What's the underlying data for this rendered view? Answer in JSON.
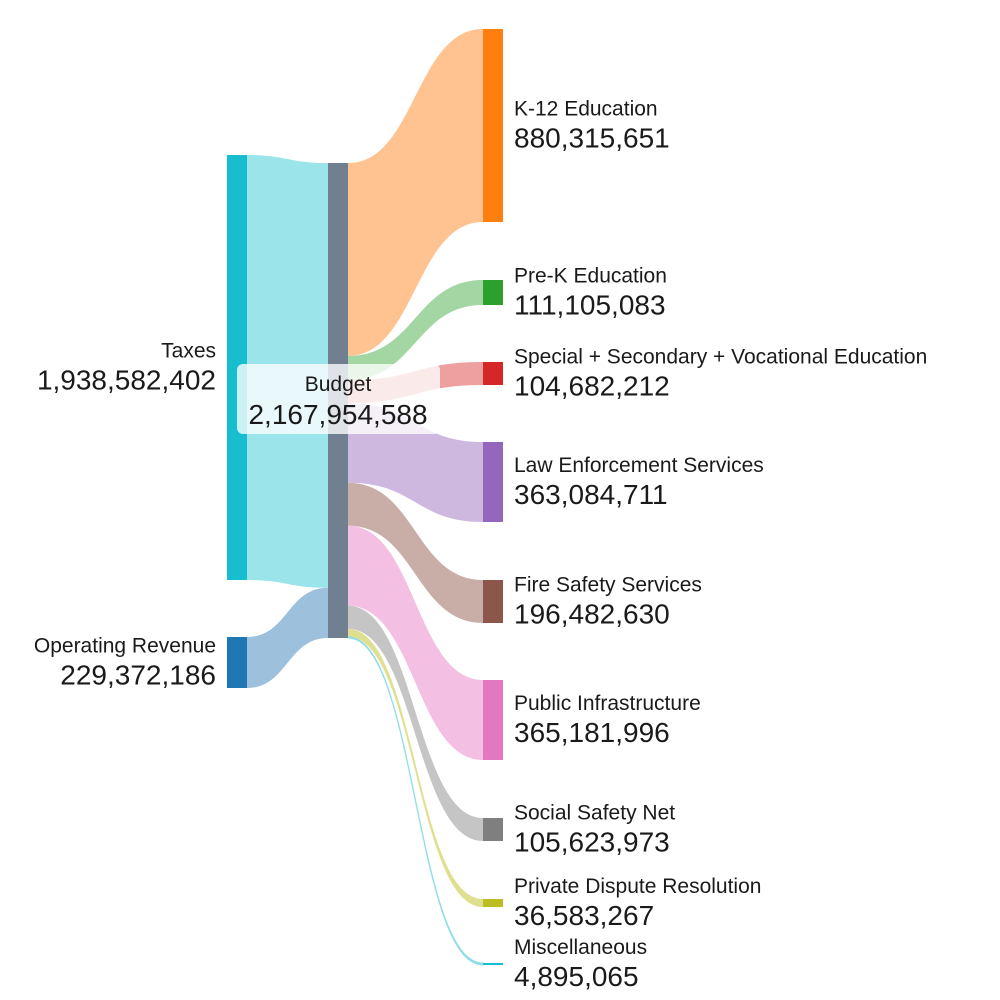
{
  "chart_data": {
    "type": "sankey",
    "title": "",
    "sources": [
      {
        "name": "Taxes",
        "value": "1,938,582,402",
        "amount": 1938582402,
        "color": "#17becf",
        "link_color": "#9ae4ea"
      },
      {
        "name": "Operating Revenue",
        "value": "229,372,186",
        "amount": 229372186,
        "color": "#1f77b4",
        "link_color": "#9dc0dc"
      }
    ],
    "hub": {
      "name": "Budget",
      "value": "2,167,954,588",
      "amount": 2167954588,
      "color": "#708090"
    },
    "targets": [
      {
        "name": "K-12 Education",
        "value": "880,315,651",
        "amount": 880315651,
        "color": "#ff7f0e",
        "link_color": "#ffc391"
      },
      {
        "name": "Pre-K Education",
        "value": "111,105,083",
        "amount": 111105083,
        "color": "#2ca02c",
        "link_color": "#a3d6a3"
      },
      {
        "name": "Special + Secondary + Vocational Education",
        "value": "104,682,212",
        "amount": 104682212,
        "color": "#d62728",
        "link_color": "#ee9f9f"
      },
      {
        "name": "Law Enforcement Services",
        "value": "363,084,711",
        "amount": 363084711,
        "color": "#9467bd",
        "link_color": "#cfb8e0"
      },
      {
        "name": "Fire Safety Services",
        "value": "196,482,630",
        "amount": 196482630,
        "color": "#8c564b",
        "link_color": "#c9aea8"
      },
      {
        "name": "Public Infrastructure",
        "value": "365,181,996",
        "amount": 365181996,
        "color": "#e377c2",
        "link_color": "#f3bfe2"
      },
      {
        "name": "Social Safety Net",
        "value": "105,623,973",
        "amount": 105623973,
        "color": "#7f7f7f",
        "link_color": "#c5c5c5"
      },
      {
        "name": "Private Dispute Resolution",
        "value": "36,583,267",
        "amount": 36583267,
        "color": "#bcbd22",
        "link_color": "#dfe08f"
      },
      {
        "name": "Miscellaneous",
        "value": "4,895,065",
        "amount": 4895065,
        "color": "#17becf",
        "link_color": "#8fdde6"
      }
    ]
  }
}
